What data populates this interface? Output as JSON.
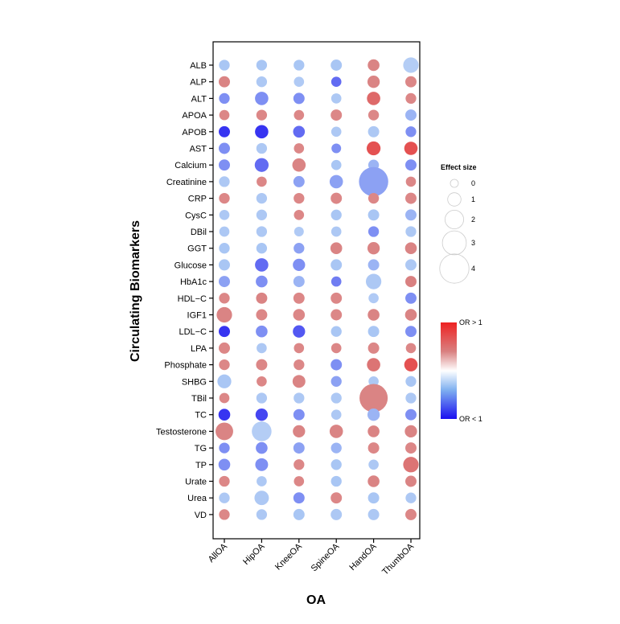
{
  "chart_data": {
    "type": "bubble-matrix",
    "xlabel": "OA",
    "ylabel": "Circulating Biomarkers",
    "x_categories": [
      "AllOA",
      "HipOA",
      "KneeOA",
      "SpineOA",
      "HandOA",
      "ThumbOA"
    ],
    "y_categories": [
      "ALB",
      "ALP",
      "ALT",
      "APOA",
      "APOB",
      "AST",
      "Calcium",
      "Creatinine",
      "CRP",
      "CysC",
      "DBil",
      "GGT",
      "Glucose",
      "HbA1c",
      "HDL−C",
      "IGF1",
      "LDL−C",
      "LPA",
      "Phosphate",
      "SHBG",
      "TBil",
      "TC",
      "Testosterone",
      "TG",
      "TP",
      "Urate",
      "Urea",
      "VD"
    ],
    "size_legend": {
      "title": "Effect size",
      "values": [
        0,
        1,
        2,
        3,
        4
      ],
      "labels": [
        "0",
        "1",
        "2",
        "3",
        "4"
      ]
    },
    "color_legend": {
      "high_label": "OR > 1",
      "low_label": "OR < 1",
      "high_color": "#ee2222",
      "mid_color": "#ffffff",
      "low_color": "#1a0ff0"
    },
    "note": "each row lists [effect_size, color] per OA column in x_categories order; color in [-1 (OR<1, blue) .. +1 (OR>1, red)]",
    "points": {
      "ALB": [
        [
          0.5,
          -0.5
        ],
        [
          0.5,
          -0.5
        ],
        [
          0.5,
          -0.5
        ],
        [
          0.6,
          -0.5
        ],
        [
          0.7,
          0.55
        ],
        [
          1.4,
          -0.35
        ]
      ],
      "ALP": [
        [
          0.6,
          0.55
        ],
        [
          0.5,
          -0.45
        ],
        [
          0.4,
          -0.4
        ],
        [
          0.4,
          -0.75
        ],
        [
          0.8,
          0.55
        ],
        [
          0.6,
          0.5
        ]
      ],
      "ALT": [
        [
          0.5,
          -0.65
        ],
        [
          1.0,
          -0.65
        ],
        [
          0.6,
          -0.65
        ],
        [
          0.4,
          -0.45
        ],
        [
          1.0,
          0.7
        ],
        [
          0.5,
          0.5
        ]
      ],
      "APOA": [
        [
          0.4,
          0.5
        ],
        [
          0.5,
          0.5
        ],
        [
          0.4,
          0.5
        ],
        [
          0.6,
          0.5
        ],
        [
          0.5,
          0.5
        ],
        [
          0.6,
          -0.55
        ]
      ],
      "APOB": [
        [
          0.6,
          -0.9
        ],
        [
          1.0,
          -0.9
        ],
        [
          0.7,
          -0.75
        ],
        [
          0.4,
          -0.45
        ],
        [
          0.6,
          -0.45
        ],
        [
          0.5,
          -0.65
        ]
      ],
      "AST": [
        [
          0.6,
          -0.65
        ],
        [
          0.5,
          -0.45
        ],
        [
          0.4,
          0.5
        ],
        [
          0.3,
          -0.65
        ],
        [
          1.1,
          0.8
        ],
        [
          1.0,
          0.8
        ]
      ],
      "Calcium": [
        [
          0.6,
          -0.65
        ],
        [
          1.1,
          -0.75
        ],
        [
          1.0,
          0.55
        ],
        [
          0.4,
          -0.5
        ],
        [
          0.5,
          -0.55
        ],
        [
          0.6,
          -0.65
        ]
      ],
      "Creatinine": [
        [
          0.5,
          -0.45
        ],
        [
          0.4,
          0.5
        ],
        [
          0.6,
          -0.6
        ],
        [
          1.0,
          -0.6
        ],
        [
          4.0,
          -0.6
        ],
        [
          0.4,
          0.5
        ]
      ],
      "CRP": [
        [
          0.5,
          0.5
        ],
        [
          0.5,
          -0.45
        ],
        [
          0.5,
          0.5
        ],
        [
          0.6,
          0.5
        ],
        [
          0.5,
          0.5
        ],
        [
          0.6,
          0.5
        ]
      ],
      "CysC": [
        [
          0.4,
          -0.45
        ],
        [
          0.5,
          -0.45
        ],
        [
          0.4,
          0.5
        ],
        [
          0.5,
          -0.5
        ],
        [
          0.6,
          -0.5
        ],
        [
          0.6,
          -0.55
        ]
      ],
      "DBil": [
        [
          0.4,
          -0.45
        ],
        [
          0.5,
          -0.45
        ],
        [
          0.3,
          -0.4
        ],
        [
          0.4,
          -0.45
        ],
        [
          0.5,
          -0.65
        ],
        [
          0.5,
          -0.45
        ]
      ],
      "GGT": [
        [
          0.5,
          -0.5
        ],
        [
          0.5,
          -0.5
        ],
        [
          0.5,
          -0.6
        ],
        [
          0.7,
          0.55
        ],
        [
          0.8,
          0.55
        ],
        [
          0.7,
          0.55
        ]
      ],
      "Glucose": [
        [
          0.6,
          -0.5
        ],
        [
          1.0,
          -0.75
        ],
        [
          0.8,
          -0.65
        ],
        [
          0.6,
          -0.5
        ],
        [
          0.6,
          -0.55
        ],
        [
          0.6,
          -0.45
        ]
      ],
      "HbA1c": [
        [
          0.6,
          -0.6
        ],
        [
          0.7,
          -0.65
        ],
        [
          0.6,
          -0.55
        ],
        [
          0.4,
          -0.7
        ],
        [
          1.4,
          -0.45
        ],
        [
          0.6,
          0.6
        ]
      ],
      "HDL−C": [
        [
          0.5,
          0.5
        ],
        [
          0.6,
          0.55
        ],
        [
          0.6,
          0.5
        ],
        [
          0.6,
          0.5
        ],
        [
          0.4,
          -0.4
        ],
        [
          0.6,
          -0.65
        ]
      ],
      "IGF1": [
        [
          1.4,
          0.55
        ],
        [
          0.6,
          0.5
        ],
        [
          0.7,
          0.5
        ],
        [
          0.6,
          0.5
        ],
        [
          0.7,
          0.55
        ],
        [
          0.7,
          0.55
        ]
      ],
      "LDL−C": [
        [
          0.6,
          -0.9
        ],
        [
          0.7,
          -0.65
        ],
        [
          0.8,
          -0.8
        ],
        [
          0.5,
          -0.5
        ],
        [
          0.6,
          -0.5
        ],
        [
          0.6,
          -0.65
        ]
      ],
      "LPA": [
        [
          0.6,
          0.5
        ],
        [
          0.4,
          -0.45
        ],
        [
          0.4,
          0.5
        ],
        [
          0.4,
          0.5
        ],
        [
          0.6,
          0.5
        ],
        [
          0.4,
          0.5
        ]
      ],
      "Phosphate": [
        [
          0.5,
          0.5
        ],
        [
          0.6,
          0.5
        ],
        [
          0.5,
          0.5
        ],
        [
          0.6,
          -0.65
        ],
        [
          1.0,
          0.65
        ],
        [
          1.0,
          0.8
        ]
      ],
      "SHBG": [
        [
          1.1,
          -0.5
        ],
        [
          0.4,
          0.5
        ],
        [
          0.9,
          0.55
        ],
        [
          0.5,
          -0.6
        ],
        [
          0.4,
          -0.45
        ],
        [
          0.5,
          -0.5
        ]
      ],
      "TBil": [
        [
          0.4,
          0.5
        ],
        [
          0.5,
          -0.45
        ],
        [
          0.5,
          -0.45
        ],
        [
          0.5,
          -0.45
        ],
        [
          3.8,
          0.55
        ],
        [
          0.5,
          -0.45
        ]
      ],
      "TC": [
        [
          0.7,
          -0.9
        ],
        [
          0.8,
          -0.85
        ],
        [
          0.6,
          -0.65
        ],
        [
          0.4,
          -0.45
        ],
        [
          0.8,
          -0.55
        ],
        [
          0.6,
          -0.65
        ]
      ],
      "Testosterone": [
        [
          1.8,
          0.55
        ],
        [
          2.2,
          -0.35
        ],
        [
          0.8,
          0.55
        ],
        [
          1.0,
          0.55
        ],
        [
          0.7,
          0.55
        ],
        [
          0.8,
          0.55
        ]
      ],
      "TG": [
        [
          0.5,
          -0.65
        ],
        [
          0.7,
          -0.65
        ],
        [
          0.6,
          -0.6
        ],
        [
          0.5,
          -0.55
        ],
        [
          0.6,
          0.5
        ],
        [
          0.6,
          0.5
        ]
      ],
      "TP": [
        [
          0.7,
          -0.65
        ],
        [
          0.9,
          -0.65
        ],
        [
          0.5,
          0.5
        ],
        [
          0.5,
          -0.5
        ],
        [
          0.4,
          -0.45
        ],
        [
          1.4,
          0.65
        ]
      ],
      "Urate": [
        [
          0.5,
          0.5
        ],
        [
          0.4,
          -0.45
        ],
        [
          0.4,
          0.5
        ],
        [
          0.5,
          -0.5
        ],
        [
          0.7,
          0.55
        ],
        [
          0.6,
          0.55
        ]
      ],
      "Urea": [
        [
          0.5,
          -0.45
        ],
        [
          1.2,
          -0.45
        ],
        [
          0.6,
          -0.65
        ],
        [
          0.6,
          0.5
        ],
        [
          0.6,
          -0.5
        ],
        [
          0.5,
          -0.45
        ]
      ],
      "VD": [
        [
          0.5,
          0.5
        ],
        [
          0.5,
          -0.45
        ],
        [
          0.6,
          -0.5
        ],
        [
          0.6,
          -0.45
        ],
        [
          0.6,
          -0.45
        ],
        [
          0.6,
          0.5
        ]
      ]
    }
  }
}
